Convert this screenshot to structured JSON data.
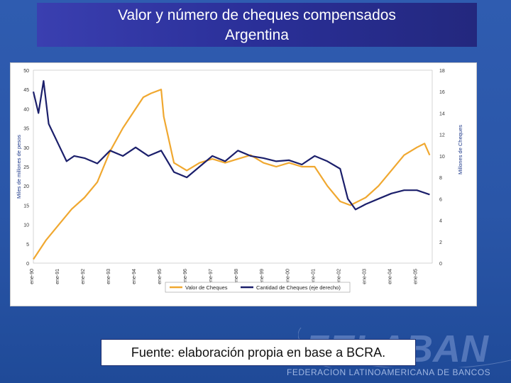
{
  "slide": {
    "title_line1": "Valor y número de cheques compensados",
    "title_line2": "Argentina",
    "source": "Fuente: elaboración propia en base a BCRA.",
    "watermark": "FELABAN",
    "federation": "FEDERACION LATINOAMERICANA DE BANCOS"
  },
  "chart_data": {
    "type": "line",
    "ylabel_left": "Miles de millones de pesos",
    "ylabel_right": "Millones de Cheques",
    "left_axis": {
      "min": 0,
      "max": 50,
      "ticks": [
        "0",
        "5",
        "10",
        "15",
        "20",
        "25",
        "30",
        "35",
        "40",
        "45",
        "50"
      ]
    },
    "right_axis": {
      "min": 0,
      "max": 18,
      "ticks": [
        "0",
        "2",
        "4",
        "6",
        "8",
        "10",
        "12",
        "14",
        "16",
        "18"
      ]
    },
    "x_ticks": [
      "ene-90",
      "ene-91",
      "ene-92",
      "ene-93",
      "ene-94",
      "ene-95",
      "ene-96",
      "ene-97",
      "ene-98",
      "ene-99",
      "ene-00",
      "ene-01",
      "ene-02",
      "ene-03",
      "ene-04",
      "ene-05"
    ],
    "colors": {
      "valor": "#f0a830",
      "cantidad": "#1b1f6b"
    },
    "series": [
      {
        "name": "Valor de Cheques",
        "axis": "left",
        "x": [
          1990.0,
          1990.5,
          1991.0,
          1991.5,
          1992.0,
          1992.5,
          1993.0,
          1993.5,
          1994.0,
          1994.3,
          1994.6,
          1995.0,
          1995.1,
          1995.5,
          1996.0,
          1996.5,
          1997.0,
          1997.5,
          1998.0,
          1998.5,
          1999.0,
          1999.5,
          2000.0,
          2000.5,
          2001.0,
          2001.5,
          2002.0,
          2002.4,
          2003.0,
          2003.5,
          2004.0,
          2004.5,
          2005.0,
          2005.3,
          2005.5
        ],
        "values": [
          1,
          6,
          10,
          14,
          17,
          21,
          29,
          35,
          40,
          43,
          44,
          45,
          38,
          26,
          24,
          26,
          27,
          26,
          27,
          28,
          26,
          25,
          26,
          25,
          25,
          20,
          16,
          15,
          17,
          20,
          24,
          28,
          30,
          31,
          28
        ]
      },
      {
        "name": "Cantidad de Cheques (eje derecho)",
        "axis": "right",
        "x": [
          1990.0,
          1990.2,
          1990.4,
          1990.6,
          1991.0,
          1991.3,
          1991.6,
          1992.0,
          1992.5,
          1993.0,
          1993.5,
          1994.0,
          1994.5,
          1995.0,
          1995.5,
          1996.0,
          1996.5,
          1997.0,
          1997.5,
          1998.0,
          1998.5,
          1999.0,
          1999.5,
          2000.0,
          2000.5,
          2001.0,
          2001.5,
          2002.0,
          2002.3,
          2002.6,
          2003.0,
          2003.5,
          2004.0,
          2004.5,
          2005.0,
          2005.5
        ],
        "values": [
          16,
          14,
          17,
          13,
          11,
          9.5,
          10,
          9.8,
          9.3,
          10.5,
          10,
          10.8,
          10,
          10.5,
          8.5,
          8,
          9,
          10,
          9.5,
          10.5,
          10,
          9.8,
          9.5,
          9.6,
          9.2,
          10,
          9.5,
          8.8,
          6,
          5,
          5.5,
          6,
          6.5,
          6.8,
          6.8,
          6.4
        ]
      }
    ]
  }
}
